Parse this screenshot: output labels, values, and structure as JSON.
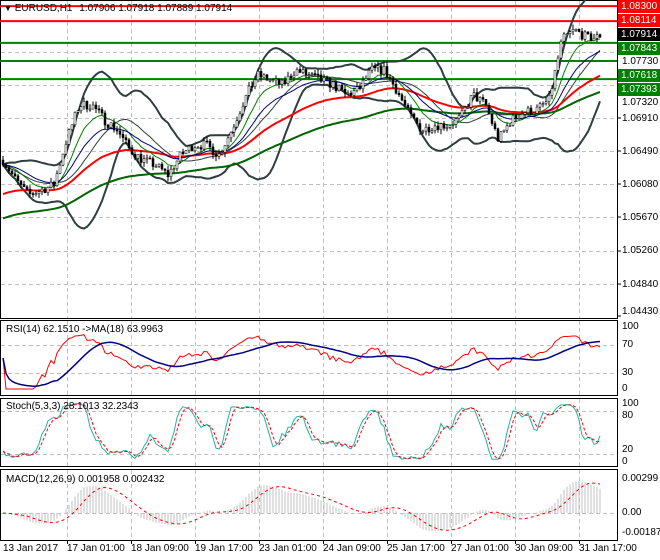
{
  "header": {
    "symbol": "EURUSD,H1",
    "ohlc": "1.07906 1.07918 1.07889 1.07914",
    "menu_icon": "triangle-down-icon"
  },
  "levels": [
    {
      "price": "1.08300",
      "color": "#ff0000"
    },
    {
      "price": "1.08114",
      "color": "#ff0000"
    },
    {
      "price": "1.07843",
      "color": "#008000"
    },
    {
      "price": "1.07618",
      "color": "#008000"
    },
    {
      "price": "1.07393",
      "color": "#008000"
    }
  ],
  "current_price": "1.07914",
  "price_axis": [
    "1.07730",
    "1.07320",
    "1.06910",
    "1.06490",
    "1.06080",
    "1.05670",
    "1.05260",
    "1.04840",
    "1.04430"
  ],
  "rsi": {
    "label": "RSI(14) 62.1510  ->MA(18) 63.9963",
    "axis": [
      "100",
      "70",
      "30",
      "0"
    ]
  },
  "stoch": {
    "label": "Stoch(5,3,3) 28.1013 32.2343",
    "axis": [
      "100",
      "80",
      "20",
      "0"
    ]
  },
  "macd": {
    "label": "MACD(12,26,9) 0.001958 0.002432",
    "axis": [
      "0.00299",
      "0.00",
      "-0.00187"
    ]
  },
  "time_axis": [
    "13 Jan 2017",
    "17 Jan 01:00",
    "18 Jan 09:00",
    "19 Jan 17:00",
    "23 Jan 01:00",
    "24 Jan 09:00",
    "25 Jan 17:00",
    "27 Jan 01:00",
    "30 Jan 09:00",
    "31 Jan 17:00"
  ],
  "colors": {
    "bull_bear_bar": "#000000",
    "ma_slow": "#ff0000",
    "ma_long": "#006400",
    "bollinger": "#2f3f3f",
    "rsi": "#ff0000",
    "rsi_ma": "#000080",
    "stoch_main": "#20b2aa",
    "stoch_signal": "#ff0000",
    "macd_hist": "#c0c0c0",
    "macd_signal": "#ff0000",
    "grid": "#c0c0c0"
  },
  "chart_data": {
    "type": "candlestick",
    "symbol": "EURUSD",
    "timeframe": "H1",
    "ylim": [
      1.0443,
      1.0832
    ],
    "grid": true,
    "closes_sampled": [
      1.06388,
      1.0614,
      1.05954,
      1.06016,
      1.06078,
      1.06637,
      1.07072,
      1.07072,
      1.06885,
      1.06761,
      1.06513,
      1.06388,
      1.06326,
      1.06202,
      1.06451,
      1.06575,
      1.06575,
      1.06451,
      1.06761,
      1.07134,
      1.07444,
      1.07382,
      1.0732,
      1.07506,
      1.07444,
      1.07382,
      1.0732,
      1.07196,
      1.07258,
      1.07506,
      1.07506,
      1.07258,
      1.06947,
      1.06761,
      1.06823,
      1.06823,
      1.0691,
      1.07196,
      1.07072,
      1.06637,
      1.06885,
      1.06985,
      1.0701,
      1.07134,
      1.07879,
      1.08003,
      1.07904,
      1.07914
    ]
  }
}
